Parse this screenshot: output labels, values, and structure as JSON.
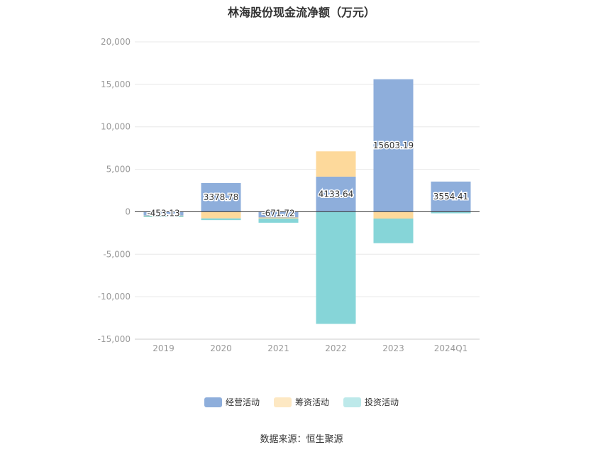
{
  "title": "林海股份现金流净额（万元）",
  "source": "数据来源：恒生聚源",
  "colors": {
    "operating": "#8eaedb",
    "financing": "#fdd99b",
    "investing": "#86d5d8",
    "grid": "#e8e8e8",
    "axis": "#333333",
    "tick_text": "#999999"
  },
  "chart_data": {
    "type": "bar",
    "stacked": true,
    "title": "林海股份现金流净额（万元）",
    "categories": [
      "2019",
      "2020",
      "2021",
      "2022",
      "2023",
      "2024Q1"
    ],
    "ylim": [
      -15000,
      20000
    ],
    "yticks": [
      20000,
      15000,
      10000,
      5000,
      0,
      -5000,
      -10000,
      -15000
    ],
    "ytick_labels": [
      "20,000",
      "15,000",
      "10,000",
      "5,000",
      "0",
      "-5,000",
      "-10,000",
      "-15,000"
    ],
    "grid": true,
    "legend_position": "bottom",
    "series": [
      {
        "name": "经营活动",
        "key": "operating",
        "values": [
          -453.13,
          3378.78,
          -671.72,
          4133.64,
          15603.19,
          3554.41
        ],
        "labels": [
          "-453.13",
          "3378.78",
          "-671.72",
          "4133.64",
          "15603.19",
          "3554.41"
        ]
      },
      {
        "name": "筹资活动",
        "key": "financing",
        "values": [
          -60,
          -780,
          -120,
          2980,
          -800,
          -30
        ]
      },
      {
        "name": "投资活动",
        "key": "investing",
        "values": [
          -120,
          -200,
          -500,
          -13200,
          -2900,
          -150
        ]
      }
    ]
  }
}
